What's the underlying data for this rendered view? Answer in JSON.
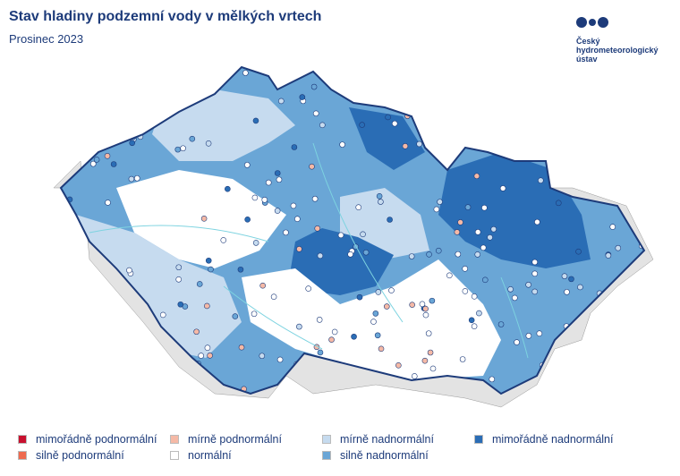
{
  "header": {
    "title": "Stav hladiny podzemní vody v mělkých vrtech",
    "subtitle": "Prosinec 2023"
  },
  "logo": {
    "lines": [
      "Český",
      "hydrometeorologický",
      "ústav"
    ]
  },
  "legend": {
    "items": [
      {
        "label": "mimořádně podnormální",
        "color": "#c8102e"
      },
      {
        "label": "silně podnormální",
        "color": "#ee6a4f"
      },
      {
        "label": "mírně podnormální",
        "color": "#f5b9a6"
      },
      {
        "label": "normální",
        "color": "#ffffff"
      },
      {
        "label": "mírně nadnormální",
        "color": "#c6dbef"
      },
      {
        "label": "silně nadnormální",
        "color": "#6aa6d6"
      },
      {
        "label": "mimořádně nadnormální",
        "color": "#2a6db5"
      }
    ]
  }
}
